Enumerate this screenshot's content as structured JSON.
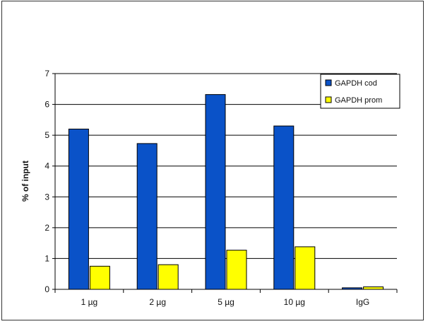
{
  "chart_data": {
    "type": "bar",
    "title": "",
    "xlabel": "",
    "ylabel": "% of input",
    "ylim": [
      0,
      7
    ],
    "yticks": [
      0,
      1,
      2,
      3,
      4,
      5,
      6,
      7
    ],
    "grid": true,
    "legend_position": "top-right",
    "categories": [
      "1 µg",
      "2 µg",
      "5 µg",
      "10 µg",
      "IgG"
    ],
    "series": [
      {
        "name": "GAPDH cod",
        "color": "#0a52c8",
        "values": [
          5.2,
          4.73,
          6.32,
          5.3,
          0.05
        ]
      },
      {
        "name": "GAPDH prom",
        "color": "#ffff00",
        "values": [
          0.75,
          0.8,
          1.27,
          1.38,
          0.08
        ]
      }
    ]
  }
}
